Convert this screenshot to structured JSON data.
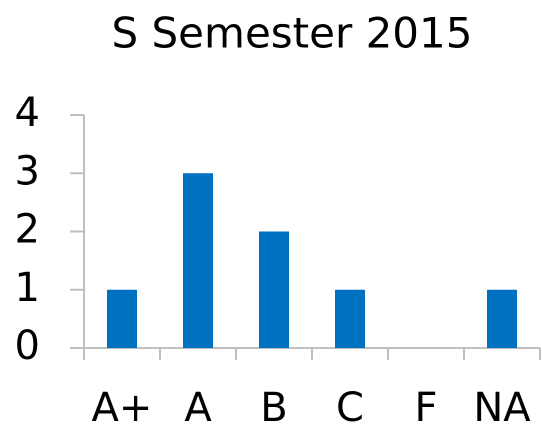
{
  "chart_data": {
    "type": "bar",
    "title": "S Semester 2015",
    "categories": [
      "A+",
      "A",
      "B",
      "C",
      "F",
      "NA"
    ],
    "values": [
      1,
      3,
      2,
      1,
      0,
      1
    ],
    "color": "#0070c0",
    "ylim": [
      0,
      4
    ],
    "yticks": [
      0,
      1,
      2,
      3,
      4
    ],
    "grid": false
  }
}
